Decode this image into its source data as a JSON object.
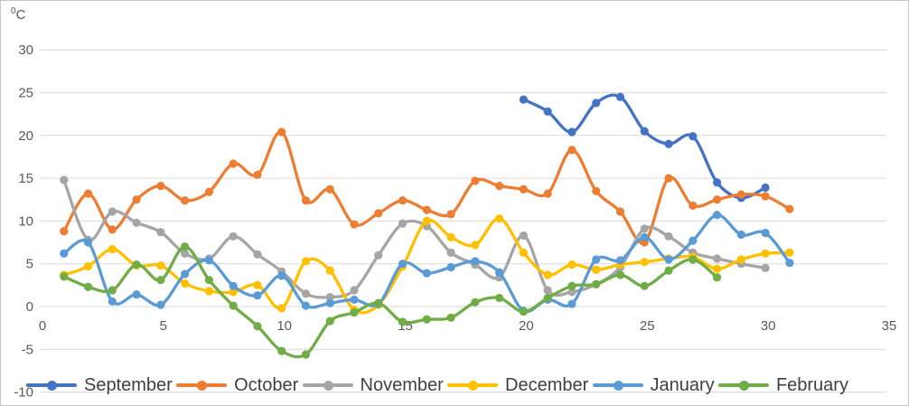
{
  "chart": {
    "unit_sup": "0",
    "unit_base": "C",
    "y_ticks": [
      30,
      25,
      20,
      15,
      10,
      5,
      0,
      -5,
      -10
    ],
    "x_ticks": [
      0,
      5,
      10,
      15,
      20,
      25,
      30,
      35
    ],
    "grid_color": "#d9d9d9",
    "tick_color": "#595959",
    "legend_text_color": "#404040"
  },
  "chart_data": {
    "type": "line",
    "title": "",
    "xlabel": "",
    "ylabel": "⁰C",
    "x_range": [
      0,
      35
    ],
    "y_range": [
      -10,
      30
    ],
    "grid": true,
    "line_style": "smoothed-with-markers",
    "legend_position": "bottom",
    "series": [
      {
        "name": "September",
        "color": "#4472C4",
        "x": [
          20,
          21,
          22,
          23,
          24,
          25,
          26,
          27,
          28,
          29,
          30
        ],
        "values": [
          24.2,
          22.8,
          20.4,
          23.8,
          24.5,
          20.5,
          19.0,
          19.9,
          14.5,
          12.7,
          13.9
        ]
      },
      {
        "name": "October",
        "color": "#ED7D31",
        "x": [
          1,
          2,
          3,
          4,
          5,
          6,
          7,
          8,
          9,
          10,
          11,
          12,
          13,
          14,
          15,
          16,
          17,
          18,
          19,
          20,
          21,
          22,
          23,
          24,
          25,
          26,
          27,
          28,
          29,
          30,
          31
        ],
        "values": [
          8.8,
          13.2,
          9.0,
          12.5,
          14.1,
          12.4,
          13.4,
          16.7,
          15.4,
          20.4,
          12.4,
          13.7,
          9.6,
          10.9,
          12.4,
          11.3,
          10.8,
          14.7,
          14.1,
          13.7,
          13.2,
          18.3,
          13.5,
          11.1,
          7.5,
          15.0,
          11.8,
          12.5,
          13.1,
          12.9,
          11.4
        ]
      },
      {
        "name": "November",
        "color": "#A5A5A5",
        "x": [
          1,
          2,
          3,
          4,
          5,
          6,
          7,
          8,
          9,
          10,
          11,
          12,
          13,
          14,
          15,
          16,
          17,
          18,
          19,
          20,
          21,
          22,
          23,
          24,
          25,
          26,
          27,
          28,
          29,
          30
        ],
        "values": [
          14.8,
          7.8,
          11.1,
          9.8,
          8.7,
          6.2,
          5.6,
          8.2,
          6.1,
          4.1,
          1.5,
          1.1,
          1.9,
          6.0,
          9.7,
          9.4,
          6.3,
          4.9,
          3.4,
          8.3,
          1.9,
          1.7,
          2.6,
          4.6,
          9.1,
          8.2,
          6.3,
          5.6,
          5.0,
          4.5
        ]
      },
      {
        "name": "December",
        "color": "#FFC000",
        "x": [
          1,
          2,
          3,
          4,
          5,
          6,
          7,
          8,
          9,
          10,
          11,
          12,
          13,
          14,
          15,
          16,
          17,
          18,
          19,
          20,
          21,
          22,
          23,
          24,
          25,
          26,
          27,
          28,
          29,
          30,
          31
        ],
        "values": [
          3.7,
          4.7,
          6.7,
          4.8,
          4.8,
          2.7,
          1.8,
          1.7,
          2.5,
          -0.2,
          5.3,
          4.2,
          -0.4,
          0.2,
          4.7,
          10.0,
          8.1,
          7.2,
          10.3,
          6.3,
          3.7,
          4.9,
          4.3,
          4.9,
          5.2,
          5.6,
          5.8,
          4.4,
          5.5,
          6.2,
          6.3
        ]
      },
      {
        "name": "January",
        "color": "#5B9BD5",
        "x": [
          1,
          2,
          3,
          4,
          5,
          6,
          7,
          8,
          9,
          10,
          11,
          12,
          13,
          14,
          15,
          16,
          17,
          18,
          19,
          20,
          21,
          22,
          23,
          24,
          25,
          26,
          27,
          28,
          29,
          30,
          31
        ],
        "values": [
          6.2,
          7.5,
          0.6,
          1.4,
          0.2,
          3.8,
          5.4,
          2.4,
          1.3,
          3.6,
          0.1,
          0.4,
          0.8,
          0.3,
          5.0,
          3.9,
          4.6,
          5.3,
          4.0,
          -0.5,
          0.8,
          0.3,
          5.5,
          5.4,
          8.1,
          5.5,
          7.7,
          10.7,
          8.4,
          8.6,
          5.1
        ]
      },
      {
        "name": "February",
        "color": "#70AD47",
        "x": [
          1,
          2,
          3,
          4,
          5,
          6,
          7,
          8,
          9,
          10,
          11,
          12,
          13,
          14,
          15,
          16,
          17,
          18,
          19,
          20,
          21,
          22,
          23,
          24,
          25,
          26,
          27,
          28
        ],
        "values": [
          3.5,
          2.3,
          1.9,
          4.9,
          3.1,
          7.0,
          3.1,
          0.1,
          -2.3,
          -5.2,
          -5.6,
          -1.7,
          -0.7,
          0.4,
          -1.8,
          -1.5,
          -1.3,
          0.5,
          1.0,
          -0.6,
          1.0,
          2.4,
          2.6,
          3.7,
          2.4,
          4.2,
          5.5,
          3.4
        ]
      }
    ]
  }
}
